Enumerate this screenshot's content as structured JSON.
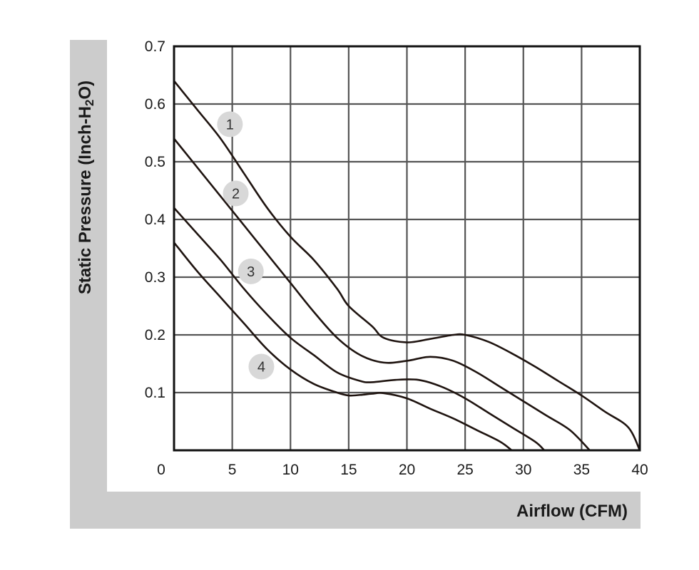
{
  "chart_data": {
    "type": "line",
    "title": "",
    "xlabel": "Airflow (CFM)",
    "ylabel_parts": [
      "Static Pressure (Inch-H",
      "2",
      "O)"
    ],
    "xlim": [
      0,
      40
    ],
    "ylim": [
      0,
      0.7
    ],
    "x_ticks": [
      0,
      5,
      10,
      15,
      20,
      25,
      30,
      35,
      40
    ],
    "y_ticks": [
      0.1,
      0.2,
      0.3,
      0.4,
      0.5,
      0.6,
      0.7
    ],
    "grid": true,
    "legend": "none",
    "series": [
      {
        "label": "1",
        "label_pos": [
          4.8,
          0.565
        ],
        "points": [
          [
            0,
            0.64
          ],
          [
            2,
            0.59
          ],
          [
            4,
            0.54
          ],
          [
            6,
            0.48
          ],
          [
            8,
            0.42
          ],
          [
            10,
            0.37
          ],
          [
            12,
            0.33
          ],
          [
            14,
            0.28
          ],
          [
            15,
            0.25
          ],
          [
            17,
            0.215
          ],
          [
            18,
            0.195
          ],
          [
            20,
            0.187
          ],
          [
            22,
            0.193
          ],
          [
            24,
            0.2
          ],
          [
            25,
            0.2
          ],
          [
            27,
            0.188
          ],
          [
            29,
            0.168
          ],
          [
            31,
            0.145
          ],
          [
            33,
            0.12
          ],
          [
            35,
            0.095
          ],
          [
            37,
            0.067
          ],
          [
            39,
            0.04
          ],
          [
            40,
            0.0
          ]
        ]
      },
      {
        "label": "2",
        "label_pos": [
          5.3,
          0.445
        ],
        "points": [
          [
            0,
            0.54
          ],
          [
            2,
            0.49
          ],
          [
            4,
            0.44
          ],
          [
            6,
            0.39
          ],
          [
            8,
            0.34
          ],
          [
            10,
            0.29
          ],
          [
            12,
            0.24
          ],
          [
            14,
            0.195
          ],
          [
            16,
            0.165
          ],
          [
            18,
            0.152
          ],
          [
            20,
            0.155
          ],
          [
            22,
            0.162
          ],
          [
            24,
            0.155
          ],
          [
            26,
            0.135
          ],
          [
            28,
            0.11
          ],
          [
            30,
            0.085
          ],
          [
            32,
            0.06
          ],
          [
            34,
            0.035
          ],
          [
            35.7,
            0.0
          ]
        ]
      },
      {
        "label": "3",
        "label_pos": [
          6.6,
          0.31
        ],
        "points": [
          [
            0,
            0.42
          ],
          [
            2,
            0.375
          ],
          [
            4,
            0.33
          ],
          [
            6,
            0.28
          ],
          [
            8,
            0.235
          ],
          [
            10,
            0.195
          ],
          [
            12,
            0.165
          ],
          [
            14,
            0.135
          ],
          [
            16,
            0.12
          ],
          [
            17,
            0.118
          ],
          [
            19,
            0.122
          ],
          [
            21,
            0.122
          ],
          [
            23,
            0.11
          ],
          [
            25,
            0.09
          ],
          [
            27,
            0.065
          ],
          [
            29,
            0.04
          ],
          [
            31,
            0.015
          ],
          [
            31.8,
            0.0
          ]
        ]
      },
      {
        "label": "4",
        "label_pos": [
          7.5,
          0.145
        ],
        "points": [
          [
            0,
            0.36
          ],
          [
            2,
            0.31
          ],
          [
            4,
            0.265
          ],
          [
            6,
            0.22
          ],
          [
            8,
            0.175
          ],
          [
            10,
            0.14
          ],
          [
            12,
            0.115
          ],
          [
            14,
            0.1
          ],
          [
            15,
            0.095
          ],
          [
            16,
            0.096
          ],
          [
            17,
            0.098
          ],
          [
            18,
            0.099
          ],
          [
            20,
            0.09
          ],
          [
            22,
            0.072
          ],
          [
            24,
            0.055
          ],
          [
            26,
            0.035
          ],
          [
            28,
            0.015
          ],
          [
            29,
            0.0
          ]
        ]
      }
    ]
  }
}
